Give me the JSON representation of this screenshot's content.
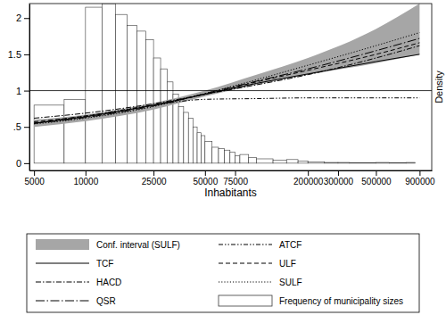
{
  "chart_data": {
    "type": "line",
    "log": "x",
    "grid": false,
    "legend": "bottom",
    "x_label": "Inhabitants",
    "y_label": "Density",
    "xlim": [
      4700,
      1060000
    ],
    "ylim": [
      -0.1,
      2.2
    ],
    "xticks": [
      5000,
      10000,
      25000,
      50000,
      75000,
      200000,
      300000,
      500000,
      900000
    ],
    "yticks": [
      0,
      {
        "value": 0.5,
        "label": ".5"
      },
      1,
      1.5,
      2
    ],
    "hline": 1,
    "x": [
      5000,
      10000,
      25000,
      50000,
      100000,
      200000,
      500000,
      900000
    ],
    "band": {
      "name": "Conf. interval (SULF)",
      "color": "#a6a6a6",
      "lower": [
        0.5,
        0.58,
        0.74,
        0.92,
        1.08,
        1.22,
        1.38,
        1.5
      ],
      "upper": [
        0.6,
        0.67,
        0.83,
        1.0,
        1.22,
        1.45,
        1.85,
        2.2
      ]
    },
    "series": [
      {
        "name": "TCF",
        "color": "#000000",
        "line_style": "solid",
        "values": [
          0.55,
          0.64,
          0.8,
          0.95,
          1.1,
          1.23,
          1.4,
          1.5
        ]
      },
      {
        "name": "HACD",
        "color": "#000000",
        "line_style": "dash_dot",
        "values": [
          0.62,
          0.69,
          0.82,
          0.95,
          1.08,
          1.22,
          1.45,
          1.62
        ]
      },
      {
        "name": "QSR",
        "color": "#000000",
        "line_style": "long_dash_dot",
        "values": [
          0.55,
          0.63,
          0.79,
          0.96,
          1.13,
          1.3,
          1.55,
          1.72
        ]
      },
      {
        "name": "ATCF",
        "color": "#000000",
        "line_style": "dash_dot_dot",
        "values": [
          0.55,
          0.65,
          0.8,
          0.88,
          0.89,
          0.9,
          0.9,
          0.9
        ]
      },
      {
        "name": "ULF",
        "color": "#000000",
        "line_style": "dash",
        "values": [
          0.57,
          0.65,
          0.8,
          0.95,
          1.12,
          1.28,
          1.5,
          1.66
        ]
      },
      {
        "name": "SULF",
        "color": "#000000",
        "line_style": "dot",
        "values": [
          0.54,
          0.62,
          0.78,
          0.96,
          1.15,
          1.35,
          1.62,
          1.8
        ]
      }
    ],
    "histogram": {
      "name": "Frequency of municipality sizes",
      "color": "#ffffff",
      "bins": [
        5000,
        7500,
        10000,
        12500,
        15000,
        17500,
        20000,
        22500,
        25000,
        27500,
        30000,
        32500,
        35000,
        37500,
        40000,
        42500,
        45000,
        47500,
        50000,
        55000,
        60000,
        65000,
        70000,
        75000,
        80000,
        90000,
        100000,
        125000,
        150000,
        175000,
        200000,
        250000,
        300000,
        350000,
        500000,
        600000,
        750000,
        850000
      ],
      "counts": [
        0.8,
        0.88,
        2.15,
        2.2,
        2.05,
        1.9,
        1.82,
        1.7,
        1.45,
        1.3,
        1.12,
        0.95,
        0.78,
        0.7,
        0.62,
        0.5,
        0.42,
        0.38,
        0.3,
        0.22,
        0.2,
        0.18,
        0.15,
        0.1,
        0.12,
        0.08,
        0.06,
        0.04,
        0.05,
        0.03,
        0.02,
        0.01,
        0.01,
        0.005,
        0.01,
        0.005,
        0.01
      ]
    }
  }
}
